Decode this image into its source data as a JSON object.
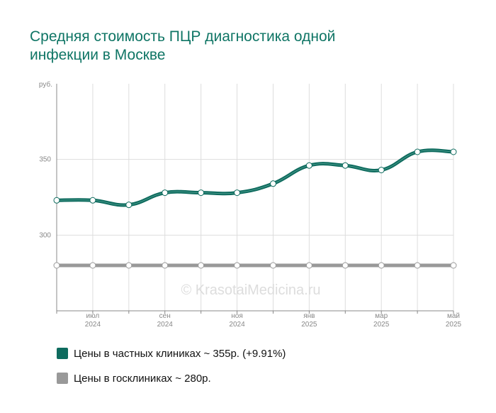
{
  "chart_data": {
    "type": "line",
    "title": [
      "Средняя стоимость ПЦР диагностика одной",
      "инфекции в Москве"
    ],
    "y_unit_label": "руб.",
    "watermark": "© KrasotaiMedicina.ru",
    "categories": [
      null,
      [
        "июл",
        "2024"
      ],
      null,
      [
        "сен",
        "2024"
      ],
      null,
      [
        "ноя",
        "2024"
      ],
      null,
      [
        "янв",
        "2025"
      ],
      null,
      [
        "мар",
        "2025"
      ],
      null,
      [
        "май",
        "2025"
      ]
    ],
    "series": [
      {
        "name": "Цены в частных клиниках ~ 355р. (+9.91%)",
        "color": "#0e6b5e",
        "values": [
          323,
          323,
          320,
          328,
          328,
          328,
          334,
          346,
          346,
          343,
          355,
          355
        ]
      },
      {
        "name": "Цены в госклиниках ~ 280р.",
        "color": "#999999",
        "values": [
          280,
          280,
          280,
          280,
          280,
          280,
          280,
          280,
          280,
          280,
          280,
          280
        ]
      }
    ],
    "ylim": [
      250,
      400
    ],
    "yticks": [
      300,
      350
    ],
    "grid": true
  }
}
